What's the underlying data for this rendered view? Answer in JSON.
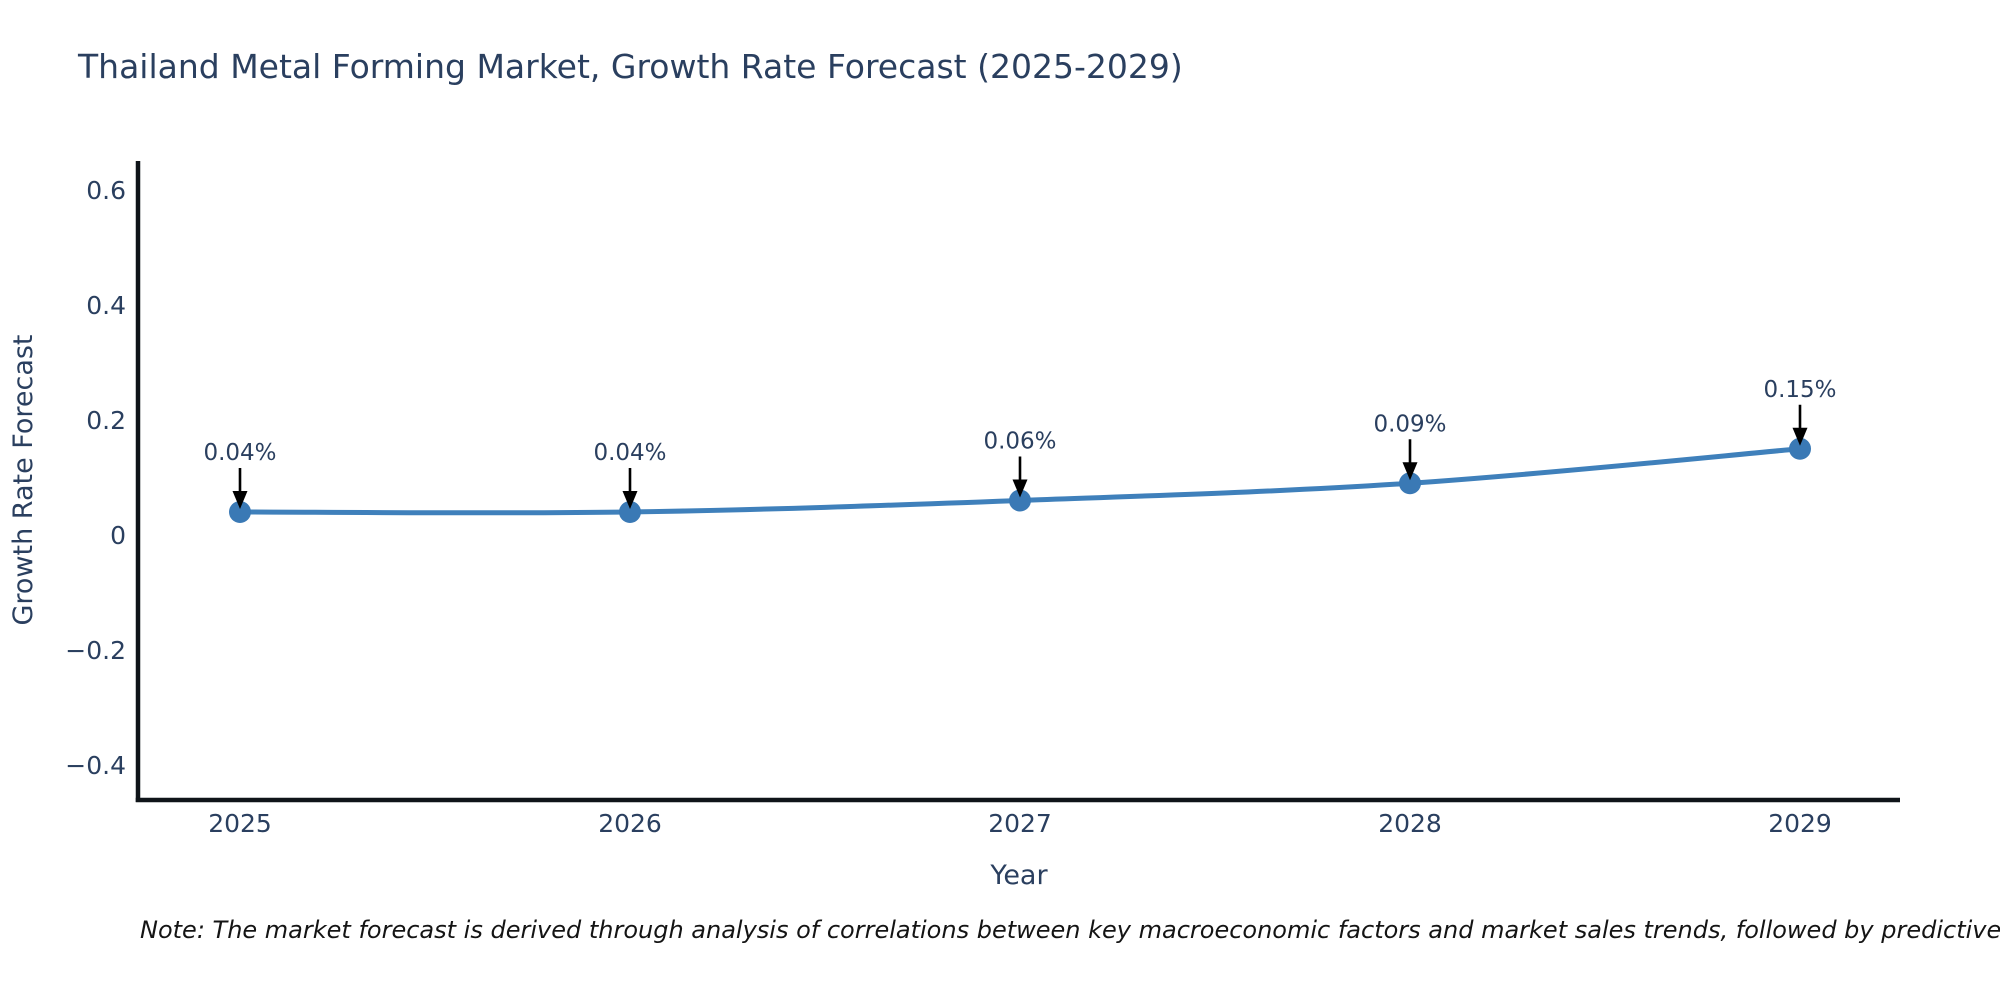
{
  "page": {
    "note": "Note: The market forecast is derived through analysis of correlations between key macroeconomic factors and market sales trends, followed by predictive modeling to project future sales."
  },
  "chart_data": {
    "type": "line",
    "title": "Thailand Metal Forming Market, Growth Rate Forecast (2025-2029)",
    "xlabel": "Year",
    "ylabel": "Growth Rate Forecast",
    "x": [
      2025,
      2026,
      2027,
      2028,
      2029
    ],
    "y": [
      0.04,
      0.04,
      0.06,
      0.09,
      0.15
    ],
    "point_labels": [
      "0.04%",
      "0.04%",
      "0.06%",
      "0.09%",
      "0.15%"
    ],
    "xtick_labels": [
      "2025",
      "2026",
      "2027",
      "2028",
      "2029"
    ],
    "yticks": [
      0.6,
      0.4,
      0.2,
      0,
      -0.2,
      -0.4
    ],
    "ytick_labels": [
      "0.6",
      "0.4",
      "0.2",
      "0",
      "−0.2",
      "−0.4"
    ],
    "ylim": [
      -0.46,
      0.65
    ],
    "grid": false,
    "legend": "none",
    "colors": {
      "line": "#3f80bb",
      "marker": "#3a79b5",
      "axis_line": "#0f1419",
      "text": "#2a3f5f",
      "annotation_arrow": "#000000",
      "note_text": "#141414",
      "background": "#ffffff"
    }
  }
}
